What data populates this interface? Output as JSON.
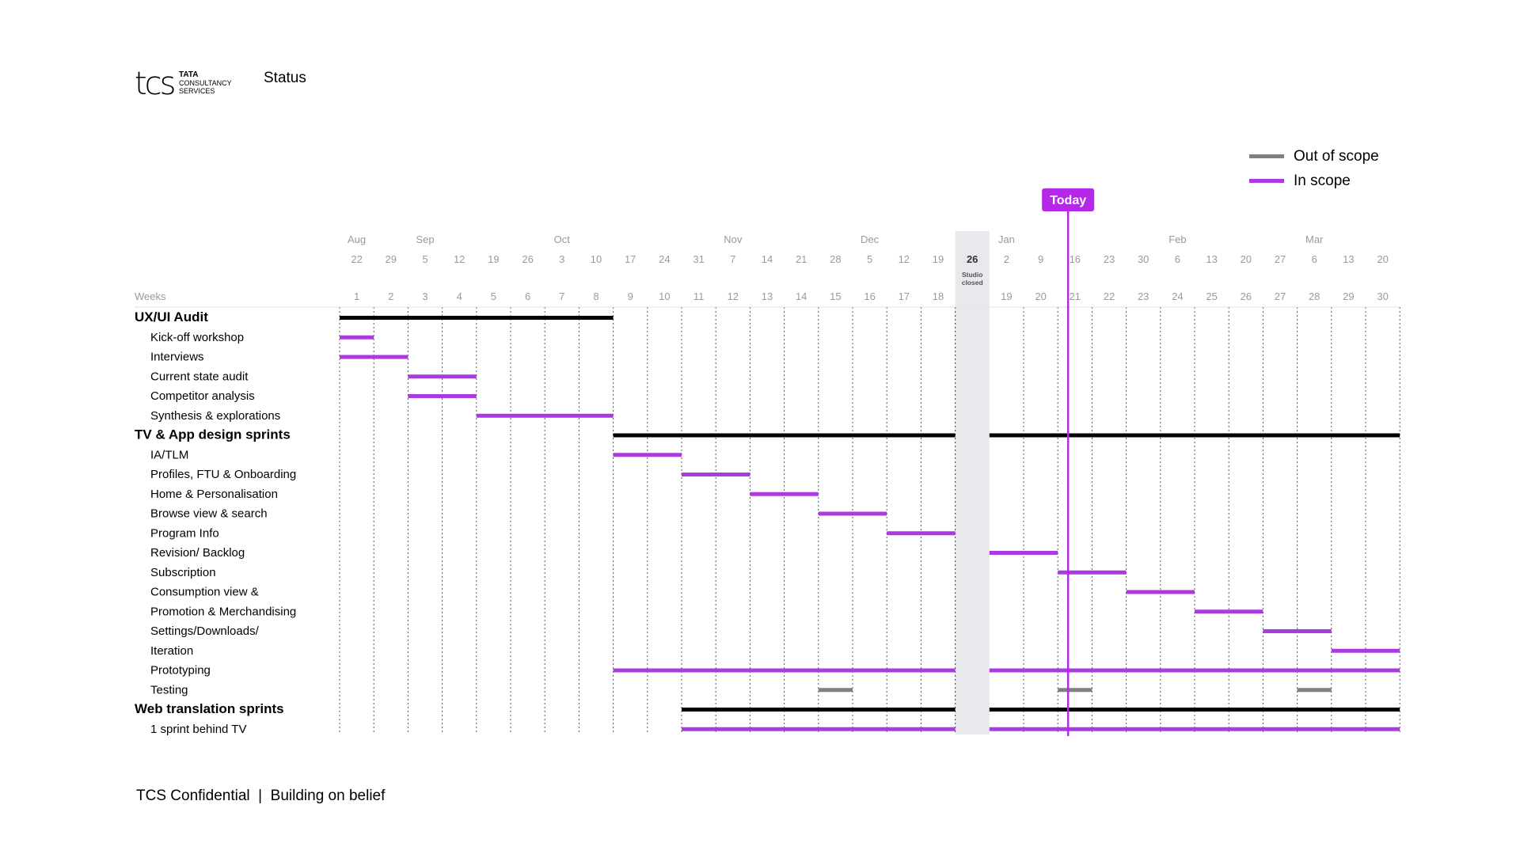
{
  "header": {
    "logo_text": "tcs",
    "logo_lines": [
      "TATA",
      "CONSULTANCY",
      "SERVICES"
    ],
    "title": "Status"
  },
  "footer": {
    "text": "TCS Confidential  |  Building on belief"
  },
  "legend": [
    {
      "label": "Out of scope",
      "color": "#808080"
    },
    {
      "label": "In scope",
      "color": "#A93BE0"
    }
  ],
  "colors": {
    "in_scope": "#A93BE0",
    "out_of_scope": "#808080",
    "section": "#000000",
    "today": "#B628E8",
    "closed": "#E8E9EC"
  },
  "chart_data": {
    "type": "gantt",
    "x_unit": "week",
    "xlabel": "Weeks",
    "month_labels": [
      {
        "label": "Aug",
        "week": 1
      },
      {
        "label": "Sep",
        "week": 3
      },
      {
        "label": "Oct",
        "week": 7
      },
      {
        "label": "Nov",
        "week": 12
      },
      {
        "label": "Dec",
        "week": 16
      },
      {
        "label": "Jan",
        "week": 19
      },
      {
        "label": "Feb",
        "week": 24
      },
      {
        "label": "Mar",
        "week": 28
      }
    ],
    "dates_before": [
      "22",
      "29",
      "5",
      "12",
      "19",
      "26",
      "3",
      "10",
      "17",
      "24",
      "31",
      "7",
      "14",
      "21",
      "28",
      "5",
      "12",
      "19"
    ],
    "dates_after": [
      "2",
      "9",
      "16",
      "23",
      "30",
      "6",
      "13",
      "20",
      "27",
      "6",
      "13",
      "20"
    ],
    "weeks_before": [
      1,
      2,
      3,
      4,
      5,
      6,
      7,
      8,
      9,
      10,
      11,
      12,
      13,
      14,
      15,
      16,
      17,
      18
    ],
    "weeks_after": [
      19,
      20,
      21,
      22,
      23,
      24,
      25,
      26,
      27,
      28,
      29,
      30
    ],
    "closed_column": {
      "date": "26",
      "note_line1": "Studio",
      "note_line2": "closed"
    },
    "today": {
      "label": "Today",
      "week_position": 21.3
    },
    "rows": [
      {
        "label": "UX/UI Audit",
        "section": true,
        "bars": [
          {
            "start": 1,
            "end": 8,
            "scope": "section"
          }
        ]
      },
      {
        "label": "Kick-off workshop",
        "section": false,
        "bars": [
          {
            "start": 1,
            "end": 1,
            "scope": "in"
          }
        ]
      },
      {
        "label": "Interviews",
        "section": false,
        "bars": [
          {
            "start": 1,
            "end": 2,
            "scope": "in"
          }
        ]
      },
      {
        "label": "Current state audit",
        "section": false,
        "bars": [
          {
            "start": 3,
            "end": 4,
            "scope": "in"
          }
        ]
      },
      {
        "label": "Competitor analysis",
        "section": false,
        "bars": [
          {
            "start": 3,
            "end": 4,
            "scope": "in"
          }
        ]
      },
      {
        "label": "Synthesis & explorations",
        "section": false,
        "bars": [
          {
            "start": 5,
            "end": 8,
            "scope": "in"
          }
        ]
      },
      {
        "label": "TV & App design sprints",
        "section": true,
        "bars": [
          {
            "start": 9,
            "end": 18,
            "scope": "section"
          },
          {
            "start": 19,
            "end": 30,
            "scope": "section"
          }
        ]
      },
      {
        "label": "IA/TLM",
        "section": false,
        "bars": [
          {
            "start": 9,
            "end": 10,
            "scope": "in"
          }
        ]
      },
      {
        "label": "Profiles, FTU & Onboarding",
        "section": false,
        "bars": [
          {
            "start": 11,
            "end": 12,
            "scope": "in"
          }
        ]
      },
      {
        "label": "Home & Personalisation",
        "section": false,
        "bars": [
          {
            "start": 13,
            "end": 14,
            "scope": "in"
          }
        ]
      },
      {
        "label": "Browse view & search",
        "section": false,
        "bars": [
          {
            "start": 15,
            "end": 16,
            "scope": "in"
          }
        ]
      },
      {
        "label": "Program Info",
        "section": false,
        "bars": [
          {
            "start": 17,
            "end": 18,
            "scope": "in"
          }
        ]
      },
      {
        "label": "Revision/ Backlog",
        "section": false,
        "bars": [
          {
            "start": 19,
            "end": 20,
            "scope": "in"
          }
        ]
      },
      {
        "label": "Subscription",
        "section": false,
        "bars": [
          {
            "start": 21,
            "end": 22,
            "scope": "in"
          }
        ]
      },
      {
        "label": "Consumption view &",
        "section": false,
        "bars": [
          {
            "start": 23,
            "end": 24,
            "scope": "in"
          }
        ]
      },
      {
        "label": "Promotion & Merchandising",
        "section": false,
        "bars": [
          {
            "start": 25,
            "end": 26,
            "scope": "in"
          }
        ]
      },
      {
        "label": "Settings/Downloads/",
        "section": false,
        "bars": [
          {
            "start": 27,
            "end": 28,
            "scope": "in"
          }
        ]
      },
      {
        "label": "Iteration",
        "section": false,
        "bars": [
          {
            "start": 29,
            "end": 30,
            "scope": "in"
          }
        ]
      },
      {
        "label": "Prototyping",
        "section": false,
        "bars": [
          {
            "start": 9,
            "end": 18,
            "scope": "in"
          },
          {
            "start": 19,
            "end": 30,
            "scope": "in"
          }
        ]
      },
      {
        "label": "Testing",
        "section": false,
        "bars": [
          {
            "start": 15,
            "end": 15,
            "scope": "out"
          },
          {
            "start": 21,
            "end": 21,
            "scope": "out"
          },
          {
            "start": 28,
            "end": 28,
            "scope": "out"
          }
        ]
      },
      {
        "label": "Web translation sprints",
        "section": true,
        "bars": [
          {
            "start": 11,
            "end": 18,
            "scope": "section"
          },
          {
            "start": 19,
            "end": 30,
            "scope": "section"
          }
        ]
      },
      {
        "label": "1 sprint behind TV",
        "section": false,
        "bars": [
          {
            "start": 11,
            "end": 18,
            "scope": "in"
          },
          {
            "start": 19,
            "end": 30,
            "scope": "in"
          }
        ]
      }
    ]
  }
}
